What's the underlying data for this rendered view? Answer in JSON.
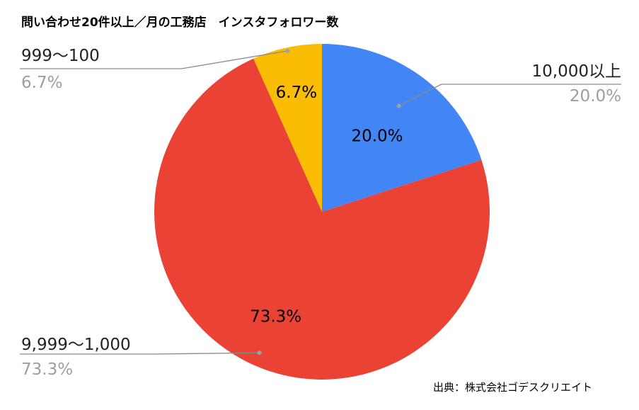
{
  "chart_data": {
    "type": "pie",
    "title": "問い合わせ20件以上／月の工務店　インスタフォロワー数",
    "slices": [
      {
        "label": "10,000以上",
        "value": 20.0,
        "percent_label": "20.0%",
        "color": "#4285f4"
      },
      {
        "label": "9,999〜1,000",
        "value": 73.3,
        "percent_label": "73.3%",
        "color": "#ea4335"
      },
      {
        "label": "999〜100",
        "value": 6.7,
        "percent_label": "6.7%",
        "color": "#fbbc04"
      }
    ],
    "source": "出典：株式会社ゴデスクリエイト"
  }
}
